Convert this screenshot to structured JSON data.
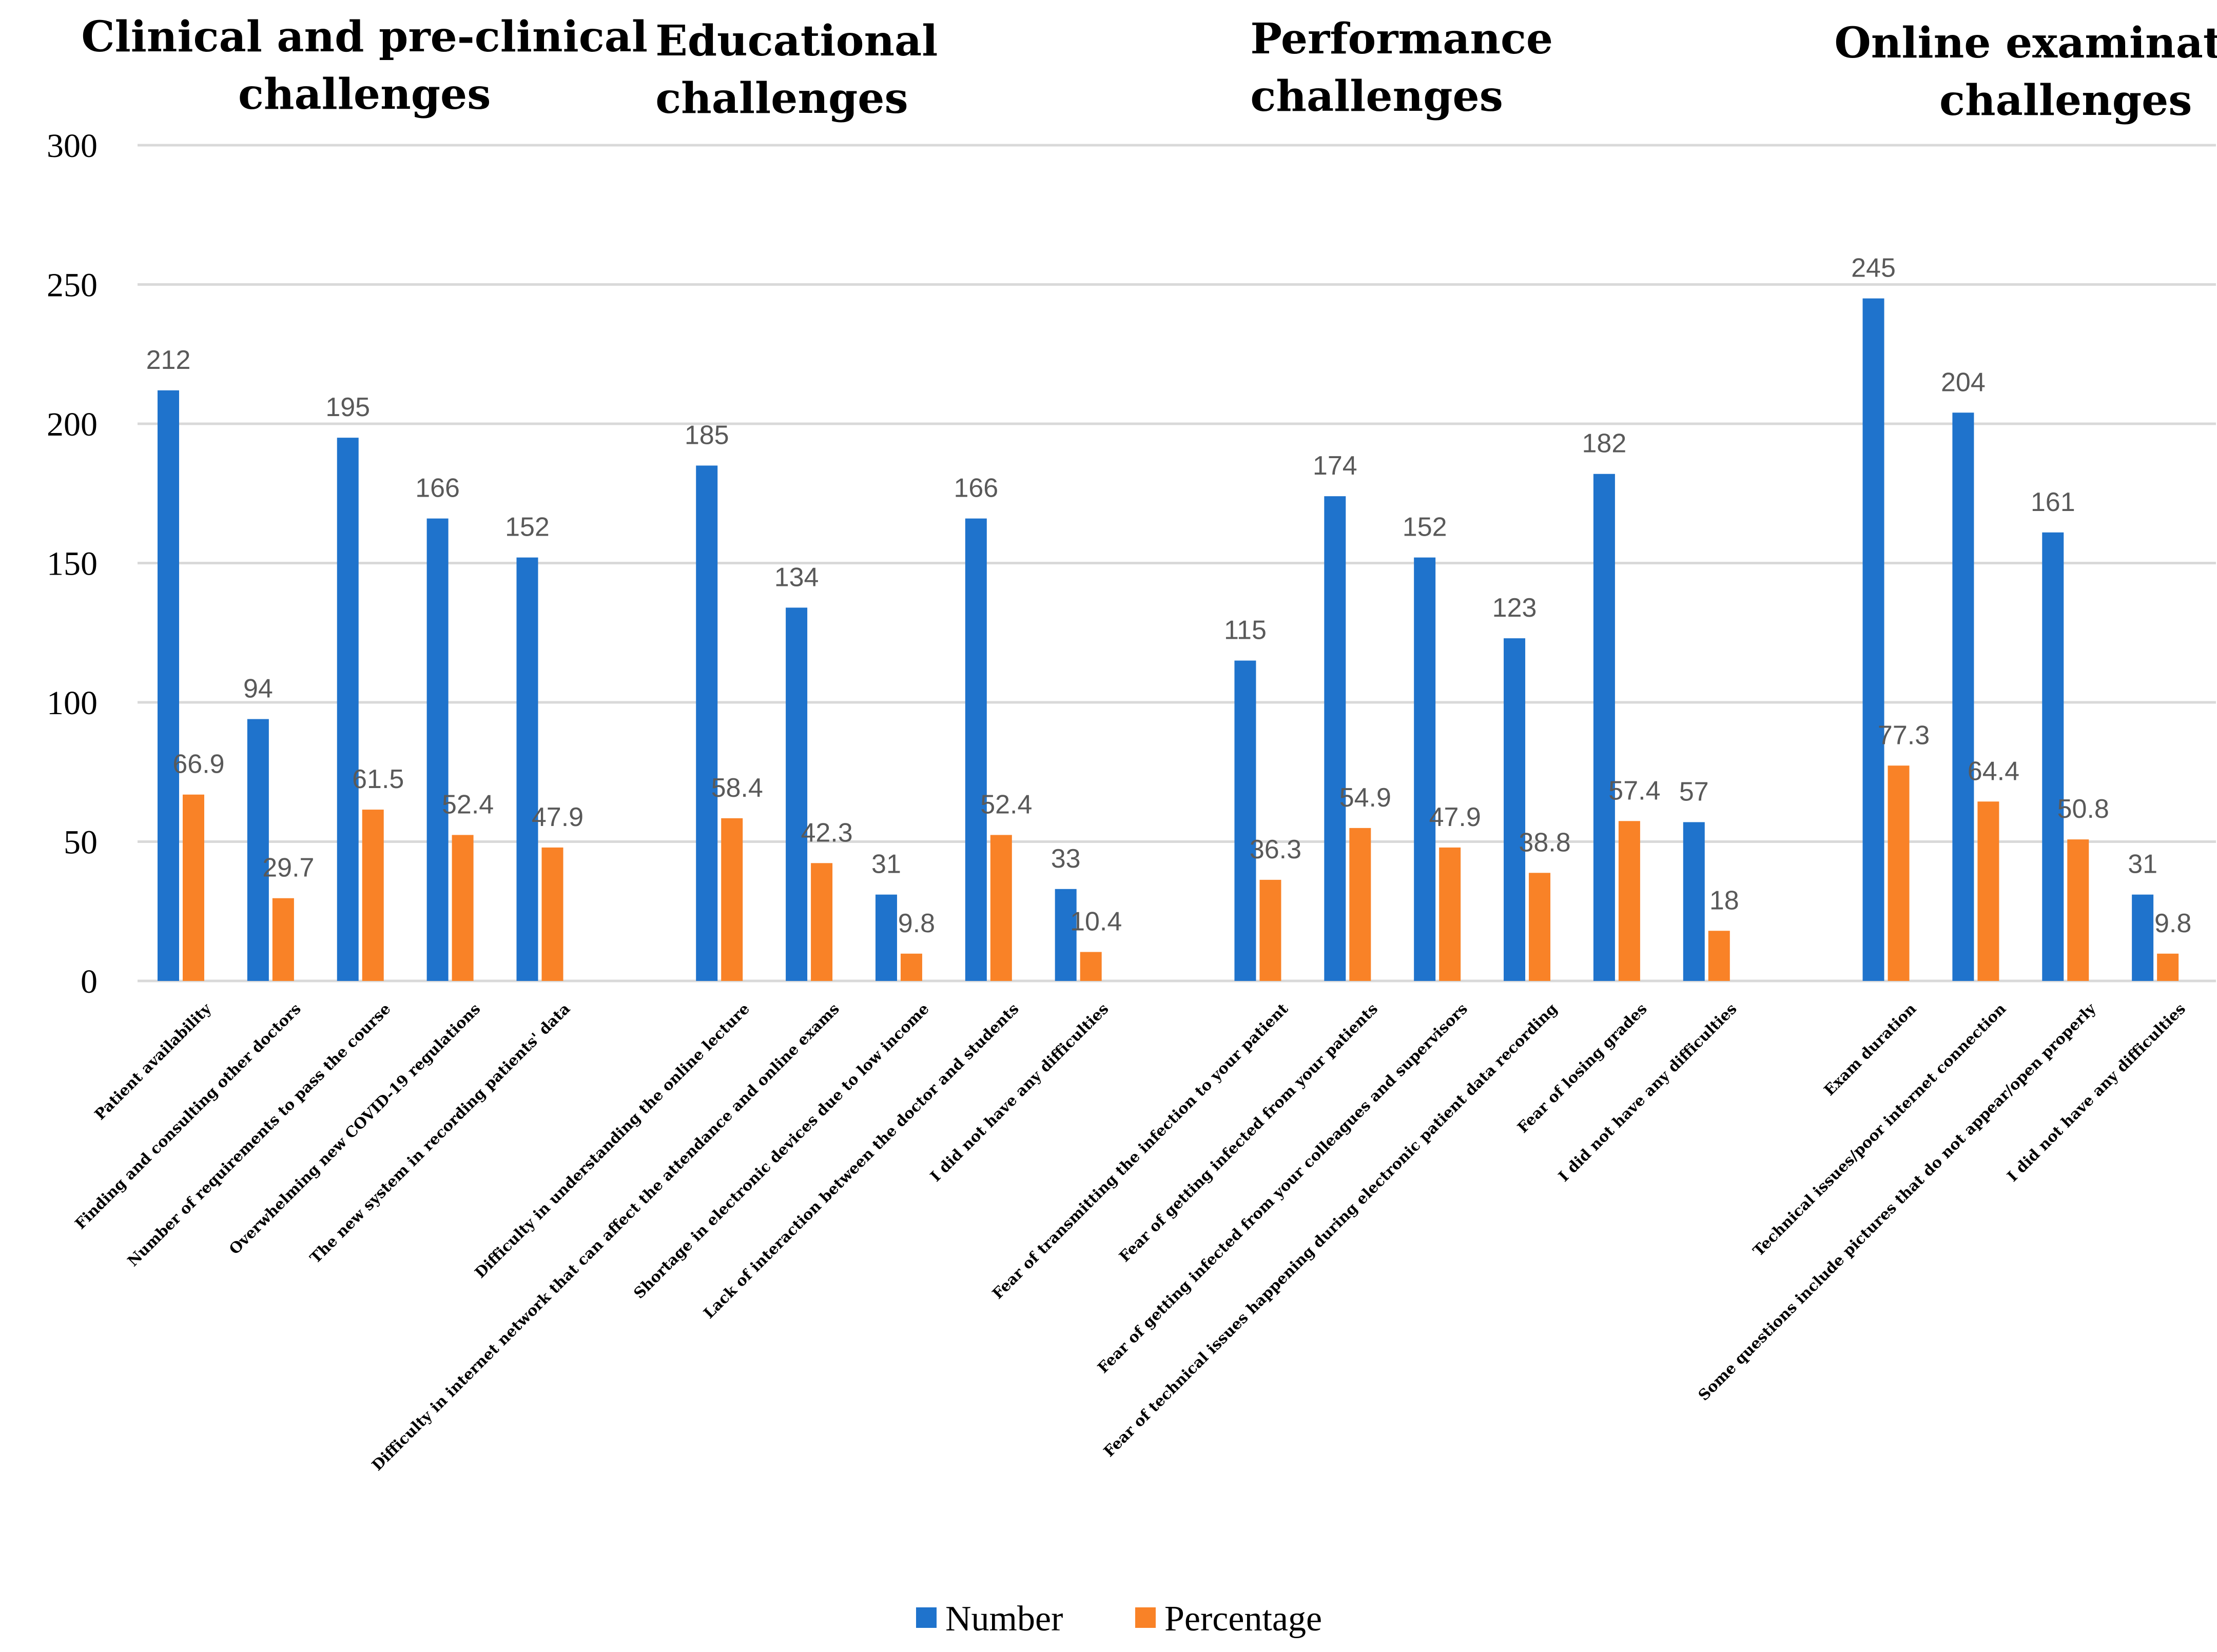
{
  "chart_data": {
    "type": "bar",
    "ylim": [
      0,
      300
    ],
    "yticks": [
      0,
      50,
      100,
      150,
      200,
      250,
      300
    ],
    "grid": true,
    "legend_position": "bottom",
    "colors": {
      "Number": "#1f73cc",
      "Percentage": "#f98227"
    },
    "groups": [
      {
        "title_lines": [
          "Clinical and pre-clinical",
          "challenges"
        ],
        "title_align": "center"
      },
      {
        "title_lines": [
          "Educational",
          "challenges"
        ],
        "title_align": "left"
      },
      {
        "title_lines": [
          "Performance",
          "challenges"
        ],
        "title_align": "left"
      },
      {
        "title_lines": [
          "Online examination",
          "challenges"
        ],
        "title_align": "center"
      }
    ],
    "categories": [
      "Patient availability",
      "Finding and consulting other doctors",
      "Number of requirements to pass the course",
      "Overwhelming new COVID-19 regulations",
      "The new system in recording patients' data",
      "",
      "Difficulty in understanding the online lecture",
      "Difficulty in internet network that can affect the attendance and online exams",
      "Shortage in electronic devices due to low income",
      "Lack of interaction between the doctor and students",
      "I did not have any difficulties",
      "",
      "Fear of transmitting the infection to your patient",
      "Fear of getting infected from your patients",
      "Fear of getting infected from your colleagues and supervisors",
      "Fear of technical issues happening during electronic patient data recording",
      "Fear of losing grades",
      "I did not have any difficulties",
      "",
      "Exam duration",
      "Technical issues/poor internet connection",
      "Some questions include pictures that do not appear/open properly",
      "I did not have any difficulties"
    ],
    "series": [
      {
        "name": "Number",
        "values": [
          212,
          94,
          195,
          166,
          152,
          null,
          185,
          134,
          31,
          166,
          33,
          null,
          115,
          174,
          152,
          123,
          182,
          57,
          null,
          245,
          204,
          161,
          31
        ]
      },
      {
        "name": "Percentage",
        "values": [
          66.9,
          29.7,
          61.5,
          52.4,
          47.9,
          null,
          58.4,
          42.3,
          9.8,
          52.4,
          10.4,
          null,
          36.3,
          54.9,
          47.9,
          38.8,
          57.4,
          18,
          null,
          77.3,
          64.4,
          50.8,
          9.8
        ]
      }
    ]
  }
}
